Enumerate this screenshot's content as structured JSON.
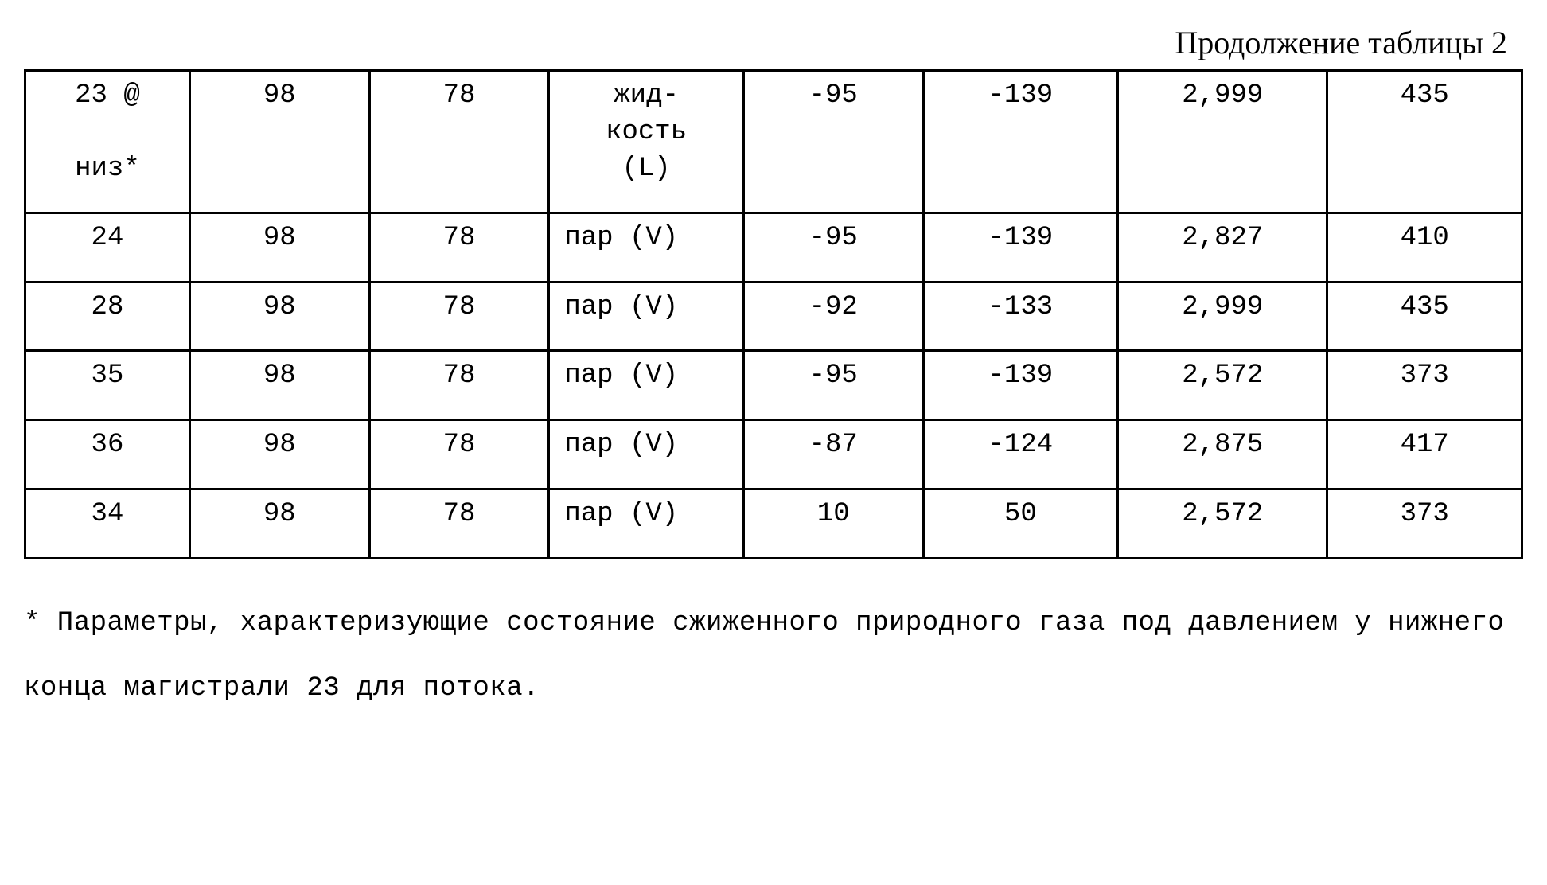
{
  "title": "Продолжение таблицы 2",
  "table": {
    "col_widths": [
      "11%",
      "12%",
      "12%",
      "13%",
      "12%",
      "13%",
      "14%",
      "13%"
    ],
    "rows": [
      [
        "23 @\n\nниз*",
        "98",
        "78",
        "жид-\nкость\n(L)",
        "-95",
        "-139",
        "2,999",
        "435"
      ],
      [
        "24",
        "98",
        "78",
        "пар (V)",
        "-95",
        "-139",
        "2,827",
        "410"
      ],
      [
        "28",
        "98",
        "78",
        "пар (V)",
        "-92",
        "-133",
        "2,999",
        "435"
      ],
      [
        "35",
        "98",
        "78",
        "пар (V)",
        "-95",
        "-139",
        "2,572",
        "373"
      ],
      [
        "36",
        "98",
        "78",
        "пар (V)",
        "-87",
        "-124",
        "2,875",
        "417"
      ],
      [
        "34",
        "98",
        "78",
        "пар (V)",
        "10",
        "50",
        "2,572",
        "373"
      ]
    ]
  },
  "footnote": "*  Параметры,  характеризующие  состояние  сжиженного  природного газа под давлением у нижнего конца магистрали 23 для потока."
}
